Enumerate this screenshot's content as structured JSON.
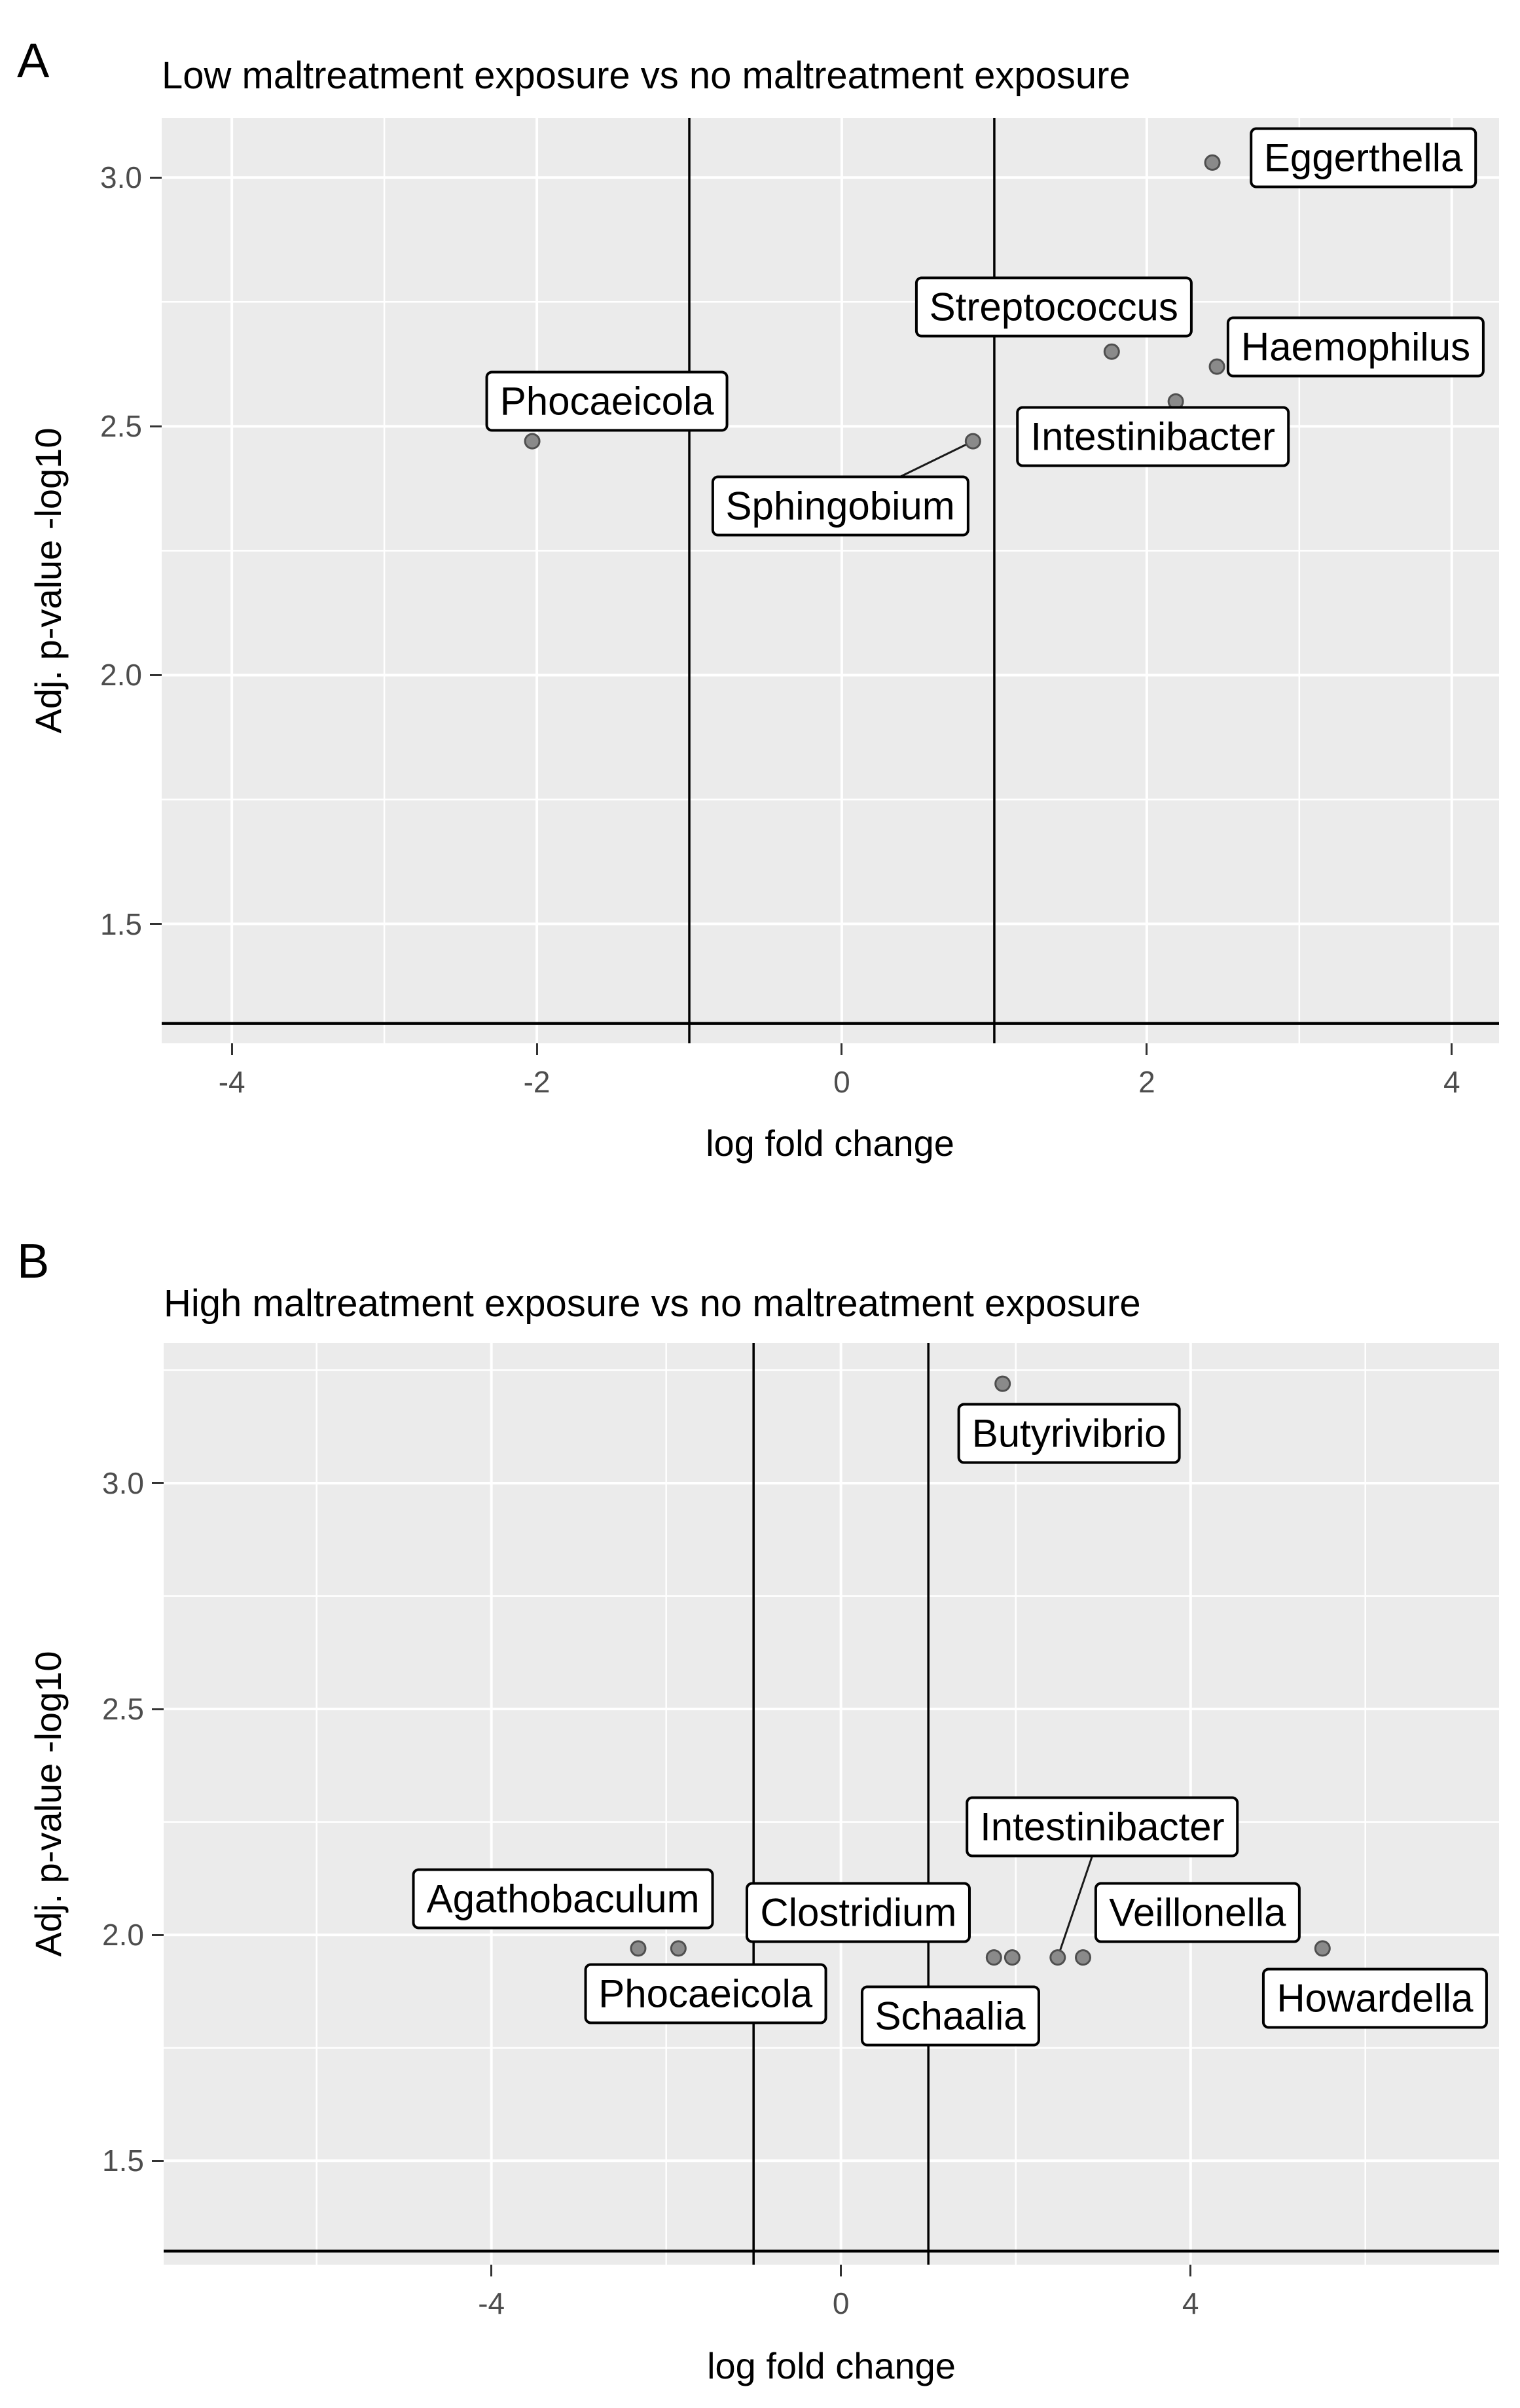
{
  "figure_colors": {
    "panel_background": "#ebebeb",
    "gridline": "#ffffff",
    "reference_line": "#000000",
    "point_fill": "#8a8a8a",
    "point_edge": "#4f4f4f",
    "tick_text": "#4d4d4d"
  },
  "chart_data": [
    {
      "type": "scatter",
      "panel_label": "A",
      "title": "Low maltreatment exposure vs no maltreatment exposure",
      "xlabel": "log fold change",
      "ylabel": "Adj. p-value -log10",
      "xlim": [
        -4.46,
        4.31
      ],
      "ylim": [
        1.26,
        3.12
      ],
      "grid": "on",
      "legend": "none",
      "x_ticks": [
        -4,
        -2,
        0,
        2,
        4
      ],
      "x_tick_labels": [
        "-4",
        "-2",
        "0",
        "2",
        "4"
      ],
      "y_ticks": [
        3.0,
        2.5,
        2.0,
        1.5
      ],
      "y_tick_labels": [
        "3.0",
        "2.5",
        "2.0",
        "1.5"
      ],
      "x_minor_gridlines": [
        -3,
        -1,
        1,
        3
      ],
      "y_minor_gridlines": [
        2.75,
        2.25,
        1.75
      ],
      "vlines": [
        -1,
        1
      ],
      "hline": 1.3,
      "points": [
        {
          "label": "Phocaeicola",
          "x": -2.03,
          "y": 2.47,
          "label_cx": -1.54,
          "label_cy": 2.55,
          "leader": false
        },
        {
          "label": "Sphingobium",
          "x": 0.86,
          "y": 2.47,
          "label_cx": -0.01,
          "label_cy": 2.34,
          "leader": true
        },
        {
          "label": "Streptococcus",
          "x": 1.77,
          "y": 2.65,
          "label_cx": 1.39,
          "label_cy": 2.74,
          "leader": false
        },
        {
          "label": "Haemophilus",
          "x": 2.46,
          "y": 2.62,
          "label_cx": 3.37,
          "label_cy": 2.66,
          "leader": false
        },
        {
          "label": "Intestinibacter",
          "x": 2.19,
          "y": 2.55,
          "label_cx": 2.04,
          "label_cy": 2.48,
          "leader": false
        },
        {
          "label": "Eggerthella",
          "x": 2.43,
          "y": 3.03,
          "label_cx": 3.42,
          "label_cy": 3.04,
          "leader": false
        }
      ]
    },
    {
      "type": "scatter",
      "panel_label": "B",
      "title": "High maltreatment exposure vs no maltreatment exposure",
      "xlabel": "log fold change",
      "ylabel": "Adj. p-value -log10",
      "xlim": [
        -7.75,
        7.53
      ],
      "ylim": [
        1.27,
        3.31
      ],
      "grid": "on",
      "legend": "none",
      "x_ticks": [
        -4,
        0,
        4
      ],
      "x_tick_labels": [
        "-4",
        "0",
        "4"
      ],
      "y_ticks": [
        3.0,
        2.5,
        2.0,
        1.5
      ],
      "y_tick_labels": [
        "3.0",
        "2.5",
        "2.0",
        "1.5"
      ],
      "x_minor_gridlines": [
        -6,
        -2,
        2,
        6
      ],
      "y_minor_gridlines": [
        3.25,
        2.75,
        2.25,
        1.75
      ],
      "vlines": [
        -1,
        1
      ],
      "hline": 1.3,
      "points": [
        {
          "label": "Butyrivibrio",
          "x": 1.85,
          "y": 3.22,
          "label_cx": 2.61,
          "label_cy": 3.11,
          "leader": false
        },
        {
          "label": "Agathobaculum",
          "x": -2.32,
          "y": 1.97,
          "label_cx": -3.18,
          "label_cy": 2.08,
          "leader": false
        },
        {
          "label": "Phocaeicola",
          "x": -1.86,
          "y": 1.97,
          "label_cx": -1.55,
          "label_cy": 1.87,
          "leader": false
        },
        {
          "label": "Clostridium",
          "x": 1.75,
          "y": 1.95,
          "label_cx": 0.2,
          "label_cy": 2.05,
          "leader": false
        },
        {
          "label": "Schaalia",
          "x": 1.96,
          "y": 1.95,
          "label_cx": 1.25,
          "label_cy": 1.82,
          "leader": false
        },
        {
          "label": "Intestinibacter",
          "x": 2.48,
          "y": 1.95,
          "label_cx": 2.99,
          "label_cy": 2.24,
          "leader": true
        },
        {
          "label": "Veillonella",
          "x": 2.77,
          "y": 1.95,
          "label_cx": 4.08,
          "label_cy": 2.05,
          "leader": false
        },
        {
          "label": "Howardella",
          "x": 5.51,
          "y": 1.97,
          "label_cx": 6.11,
          "label_cy": 1.86,
          "leader": false
        }
      ]
    }
  ]
}
